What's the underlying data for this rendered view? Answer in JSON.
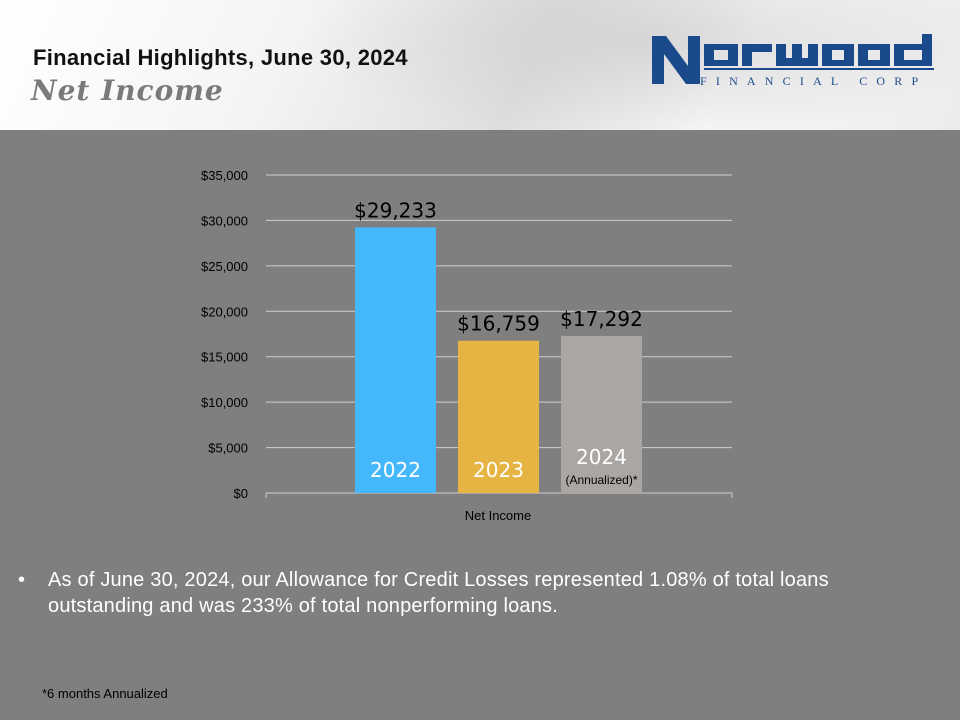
{
  "header": {
    "title": "Financial Highlights, June 30, 2024",
    "subtitle": "Net Income",
    "logo_name": "Norwood",
    "logo_tagline": "FINANCIAL CORP",
    "logo_color": "#1a4a8c"
  },
  "chart_data": {
    "type": "bar",
    "title": "",
    "xlabel": "Net Income",
    "ylabel": "",
    "ylim": [
      0,
      35000
    ],
    "ytick_step": 5000,
    "yticks": [
      "$0",
      "$5,000",
      "$10,000",
      "$15,000",
      "$20,000",
      "$25,000",
      "$30,000",
      "$35,000"
    ],
    "grid": true,
    "categories": [
      "2022",
      "2023",
      "2024"
    ],
    "category_notes": [
      "",
      "",
      "(Annualized)*"
    ],
    "values": [
      29233,
      16759,
      17292
    ],
    "value_labels": [
      "$29,233",
      "$16,759",
      "$17,292"
    ],
    "colors": [
      "#45b8fd",
      "#e6b442",
      "#aaa6a4"
    ]
  },
  "bullet_text": "As of June 30, 2024, our Allowance for Credit Losses represented 1.08% of total loans outstanding and was 233% of total nonperforming loans.",
  "footnote": "*6 months Annualized"
}
